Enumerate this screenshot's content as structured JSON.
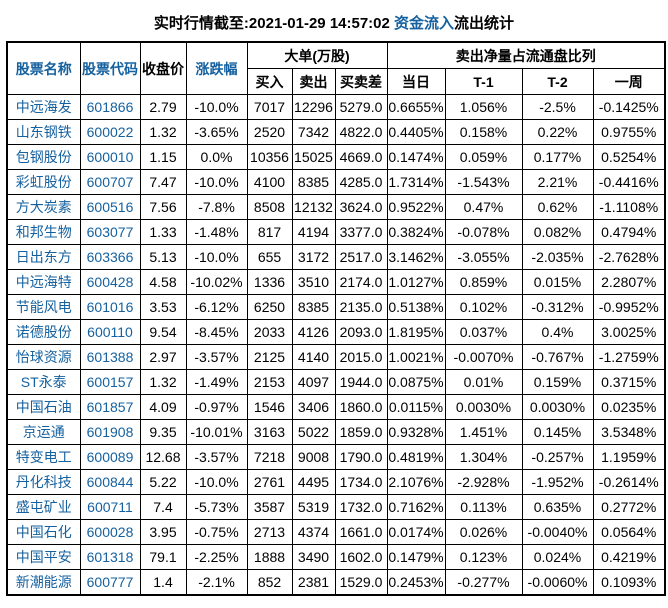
{
  "title": {
    "prefix": "实时行情截至:2021-01-29 14:57:02 ",
    "inflow_link": "资金流入",
    "suffix": "流出统计"
  },
  "colors": {
    "link_blue": "#15619f",
    "text_black": "#000000",
    "border_black": "#000000",
    "background": "#ffffff"
  },
  "table": {
    "headers": {
      "stock_name": "股票名称",
      "stock_code": "股票代码",
      "close_price": "收盘价",
      "change_pct": "涨跌幅",
      "large_orders_group": "大单(万股)",
      "buy": "买入",
      "sell": "卖出",
      "buy_sell_diff": "买卖差",
      "net_sell_group": "卖出净量占流通盘比列",
      "day": "当日",
      "t1": "T-1",
      "t2": "T-2",
      "week": "一周"
    },
    "rows": [
      [
        "中远海发",
        "601866",
        "2.79",
        "-10.0%",
        "7017",
        "12296",
        "5279.0",
        "0.6655%",
        "1.056%",
        "-2.5%",
        "-0.1425%"
      ],
      [
        "山东钢铁",
        "600022",
        "1.32",
        "-3.65%",
        "2520",
        "7342",
        "4822.0",
        "0.4405%",
        "0.158%",
        "0.22%",
        "0.9755%"
      ],
      [
        "包钢股份",
        "600010",
        "1.15",
        "0.0%",
        "10356",
        "15025",
        "4669.0",
        "0.1474%",
        "0.059%",
        "0.177%",
        "0.5254%"
      ],
      [
        "彩虹股份",
        "600707",
        "7.47",
        "-10.0%",
        "4100",
        "8385",
        "4285.0",
        "1.7314%",
        "-1.543%",
        "2.21%",
        "-0.4416%"
      ],
      [
        "方大炭素",
        "600516",
        "7.56",
        "-7.8%",
        "8508",
        "12132",
        "3624.0",
        "0.9522%",
        "0.47%",
        "0.62%",
        "-1.1108%"
      ],
      [
        "和邦生物",
        "603077",
        "1.33",
        "-1.48%",
        "817",
        "4194",
        "3377.0",
        "0.3824%",
        "-0.078%",
        "0.082%",
        "0.4794%"
      ],
      [
        "日出东方",
        "603366",
        "5.13",
        "-10.0%",
        "655",
        "3172",
        "2517.0",
        "3.1462%",
        "-3.055%",
        "-2.035%",
        "-2.7628%"
      ],
      [
        "中远海特",
        "600428",
        "4.58",
        "-10.02%",
        "1336",
        "3510",
        "2174.0",
        "1.0127%",
        "0.859%",
        "0.015%",
        "2.2807%"
      ],
      [
        "节能风电",
        "601016",
        "3.53",
        "-6.12%",
        "6250",
        "8385",
        "2135.0",
        "0.5138%",
        "0.102%",
        "-0.312%",
        "-0.9952%"
      ],
      [
        "诺德股份",
        "600110",
        "9.54",
        "-8.45%",
        "2033",
        "4126",
        "2093.0",
        "1.8195%",
        "0.037%",
        "0.4%",
        "3.0025%"
      ],
      [
        "怡球资源",
        "601388",
        "2.97",
        "-3.57%",
        "2125",
        "4140",
        "2015.0",
        "1.0021%",
        "-0.0070%",
        "-0.767%",
        "-1.2759%"
      ],
      [
        "ST永泰",
        "600157",
        "1.32",
        "-1.49%",
        "2153",
        "4097",
        "1944.0",
        "0.0875%",
        "0.01%",
        "0.159%",
        "0.3715%"
      ],
      [
        "中国石油",
        "601857",
        "4.09",
        "-0.97%",
        "1546",
        "3406",
        "1860.0",
        "0.0115%",
        "0.0030%",
        "0.0030%",
        "0.0235%"
      ],
      [
        "京运通",
        "601908",
        "9.35",
        "-10.01%",
        "3163",
        "5022",
        "1859.0",
        "0.9328%",
        "1.451%",
        "0.145%",
        "3.5348%"
      ],
      [
        "特变电工",
        "600089",
        "12.68",
        "-3.57%",
        "7218",
        "9008",
        "1790.0",
        "0.4819%",
        "1.304%",
        "-0.257%",
        "1.1959%"
      ],
      [
        "丹化科技",
        "600844",
        "5.22",
        "-10.0%",
        "2761",
        "4495",
        "1734.0",
        "2.1076%",
        "-2.928%",
        "-1.952%",
        "-0.2614%"
      ],
      [
        "盛屯矿业",
        "600711",
        "7.4",
        "-5.73%",
        "3587",
        "5319",
        "1732.0",
        "0.7162%",
        "0.113%",
        "0.635%",
        "0.2772%"
      ],
      [
        "中国石化",
        "600028",
        "3.95",
        "-0.75%",
        "2713",
        "4374",
        "1661.0",
        "0.0174%",
        "0.026%",
        "-0.0040%",
        "0.0564%"
      ],
      [
        "中国平安",
        "601318",
        "79.1",
        "-2.25%",
        "1888",
        "3490",
        "1602.0",
        "0.1479%",
        "0.123%",
        "0.024%",
        "0.4219%"
      ],
      [
        "新潮能源",
        "600777",
        "1.4",
        "-2.1%",
        "852",
        "2381",
        "1529.0",
        "0.2453%",
        "-0.277%",
        "-0.0060%",
        "0.1093%"
      ]
    ]
  }
}
